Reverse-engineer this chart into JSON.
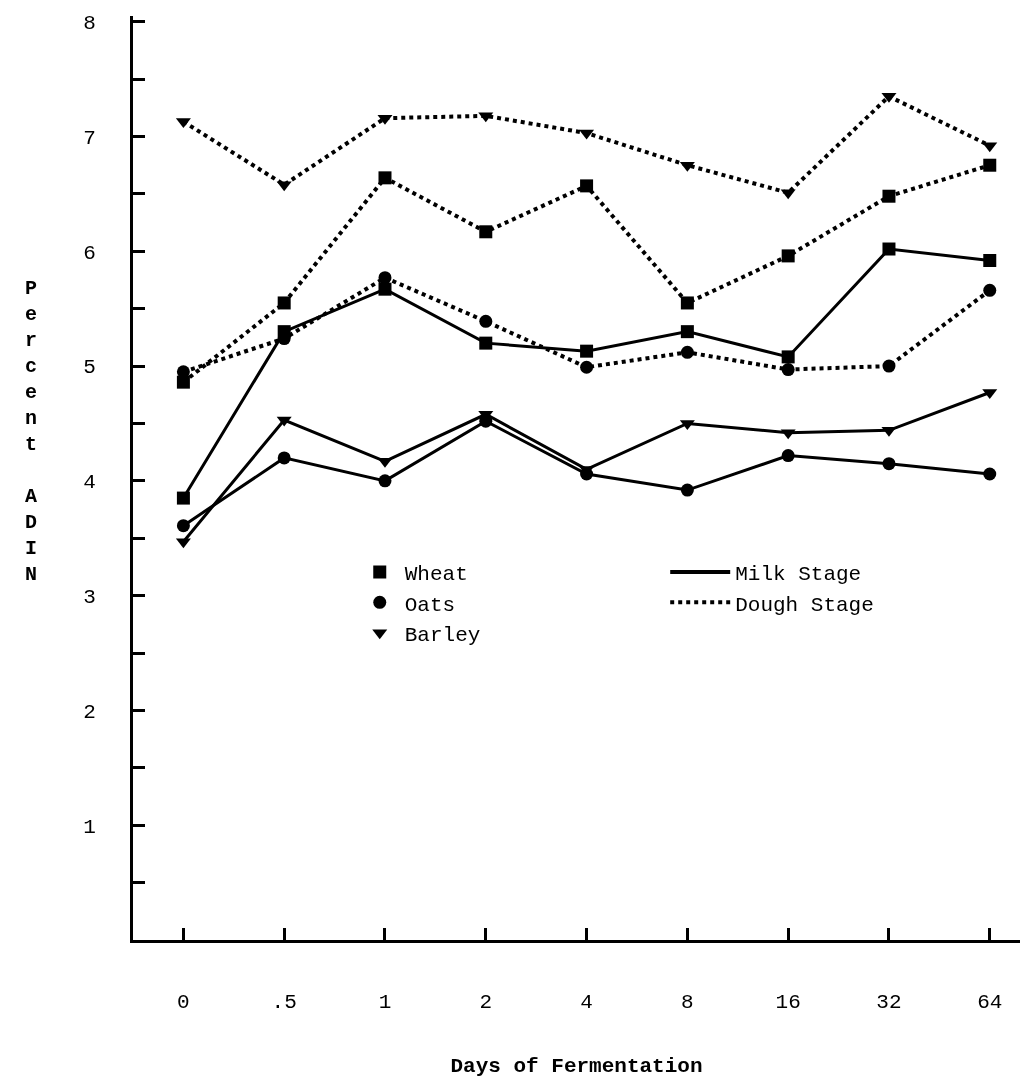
{
  "chart_data": {
    "type": "line",
    "xlabel": "Days of Fermentation",
    "ylabel": "Percent ADIN",
    "categories": [
      "0",
      ".5",
      "1",
      "2",
      "4",
      "8",
      "16",
      "32",
      "64"
    ],
    "ylim": [
      0,
      8.05
    ],
    "yticks": [
      {
        "value": 0.5,
        "label": null
      },
      1,
      {
        "value": 1.5,
        "label": null
      },
      2,
      {
        "value": 2.5,
        "label": null
      },
      3,
      {
        "value": 3.5,
        "label": null
      },
      4,
      {
        "value": 4.5,
        "label": null
      },
      5,
      {
        "value": 5.5,
        "label": null
      },
      6,
      {
        "value": 6.5,
        "label": null
      },
      7,
      {
        "value": 7.5,
        "label": null
      },
      8
    ],
    "series": [
      {
        "name": "Wheat",
        "color": "#000000",
        "marker": "square",
        "line_style": "solid",
        "values": [
          3.85,
          5.3,
          5.67,
          5.2,
          5.13,
          5.3,
          5.08,
          6.02,
          5.92
        ]
      },
      {
        "name": "Oats",
        "color": "#000000",
        "marker": "circle",
        "line_style": "solid",
        "values": [
          3.61,
          4.2,
          4.0,
          4.52,
          4.06,
          3.92,
          4.22,
          4.15,
          4.06
        ]
      },
      {
        "name": "Barley",
        "color": "#000000",
        "marker": "triangle",
        "line_style": "solid",
        "values": [
          3.47,
          4.53,
          4.17,
          4.58,
          4.1,
          4.5,
          4.42,
          4.44,
          4.77
        ]
      },
      {
        "color": "#000000",
        "marker": "square",
        "line_style": "dotted",
        "values": [
          4.86,
          5.55,
          6.64,
          6.17,
          6.57,
          5.55,
          5.96,
          6.48,
          6.75
        ]
      },
      {
        "color": "#000000",
        "marker": "circle",
        "line_style": "dotted",
        "values": [
          4.95,
          5.24,
          5.77,
          5.39,
          4.99,
          5.12,
          4.97,
          5.0,
          5.66
        ]
      },
      {
        "color": "#000000",
        "marker": "triangle",
        "line_style": "dotted",
        "values": [
          7.13,
          6.58,
          7.16,
          7.18,
          7.03,
          6.75,
          6.51,
          7.35,
          6.92
        ]
      }
    ],
    "annotations": [
      "Milk Stage",
      "Dough Stage"
    ],
    "legend": "bottom",
    "grid": false
  }
}
